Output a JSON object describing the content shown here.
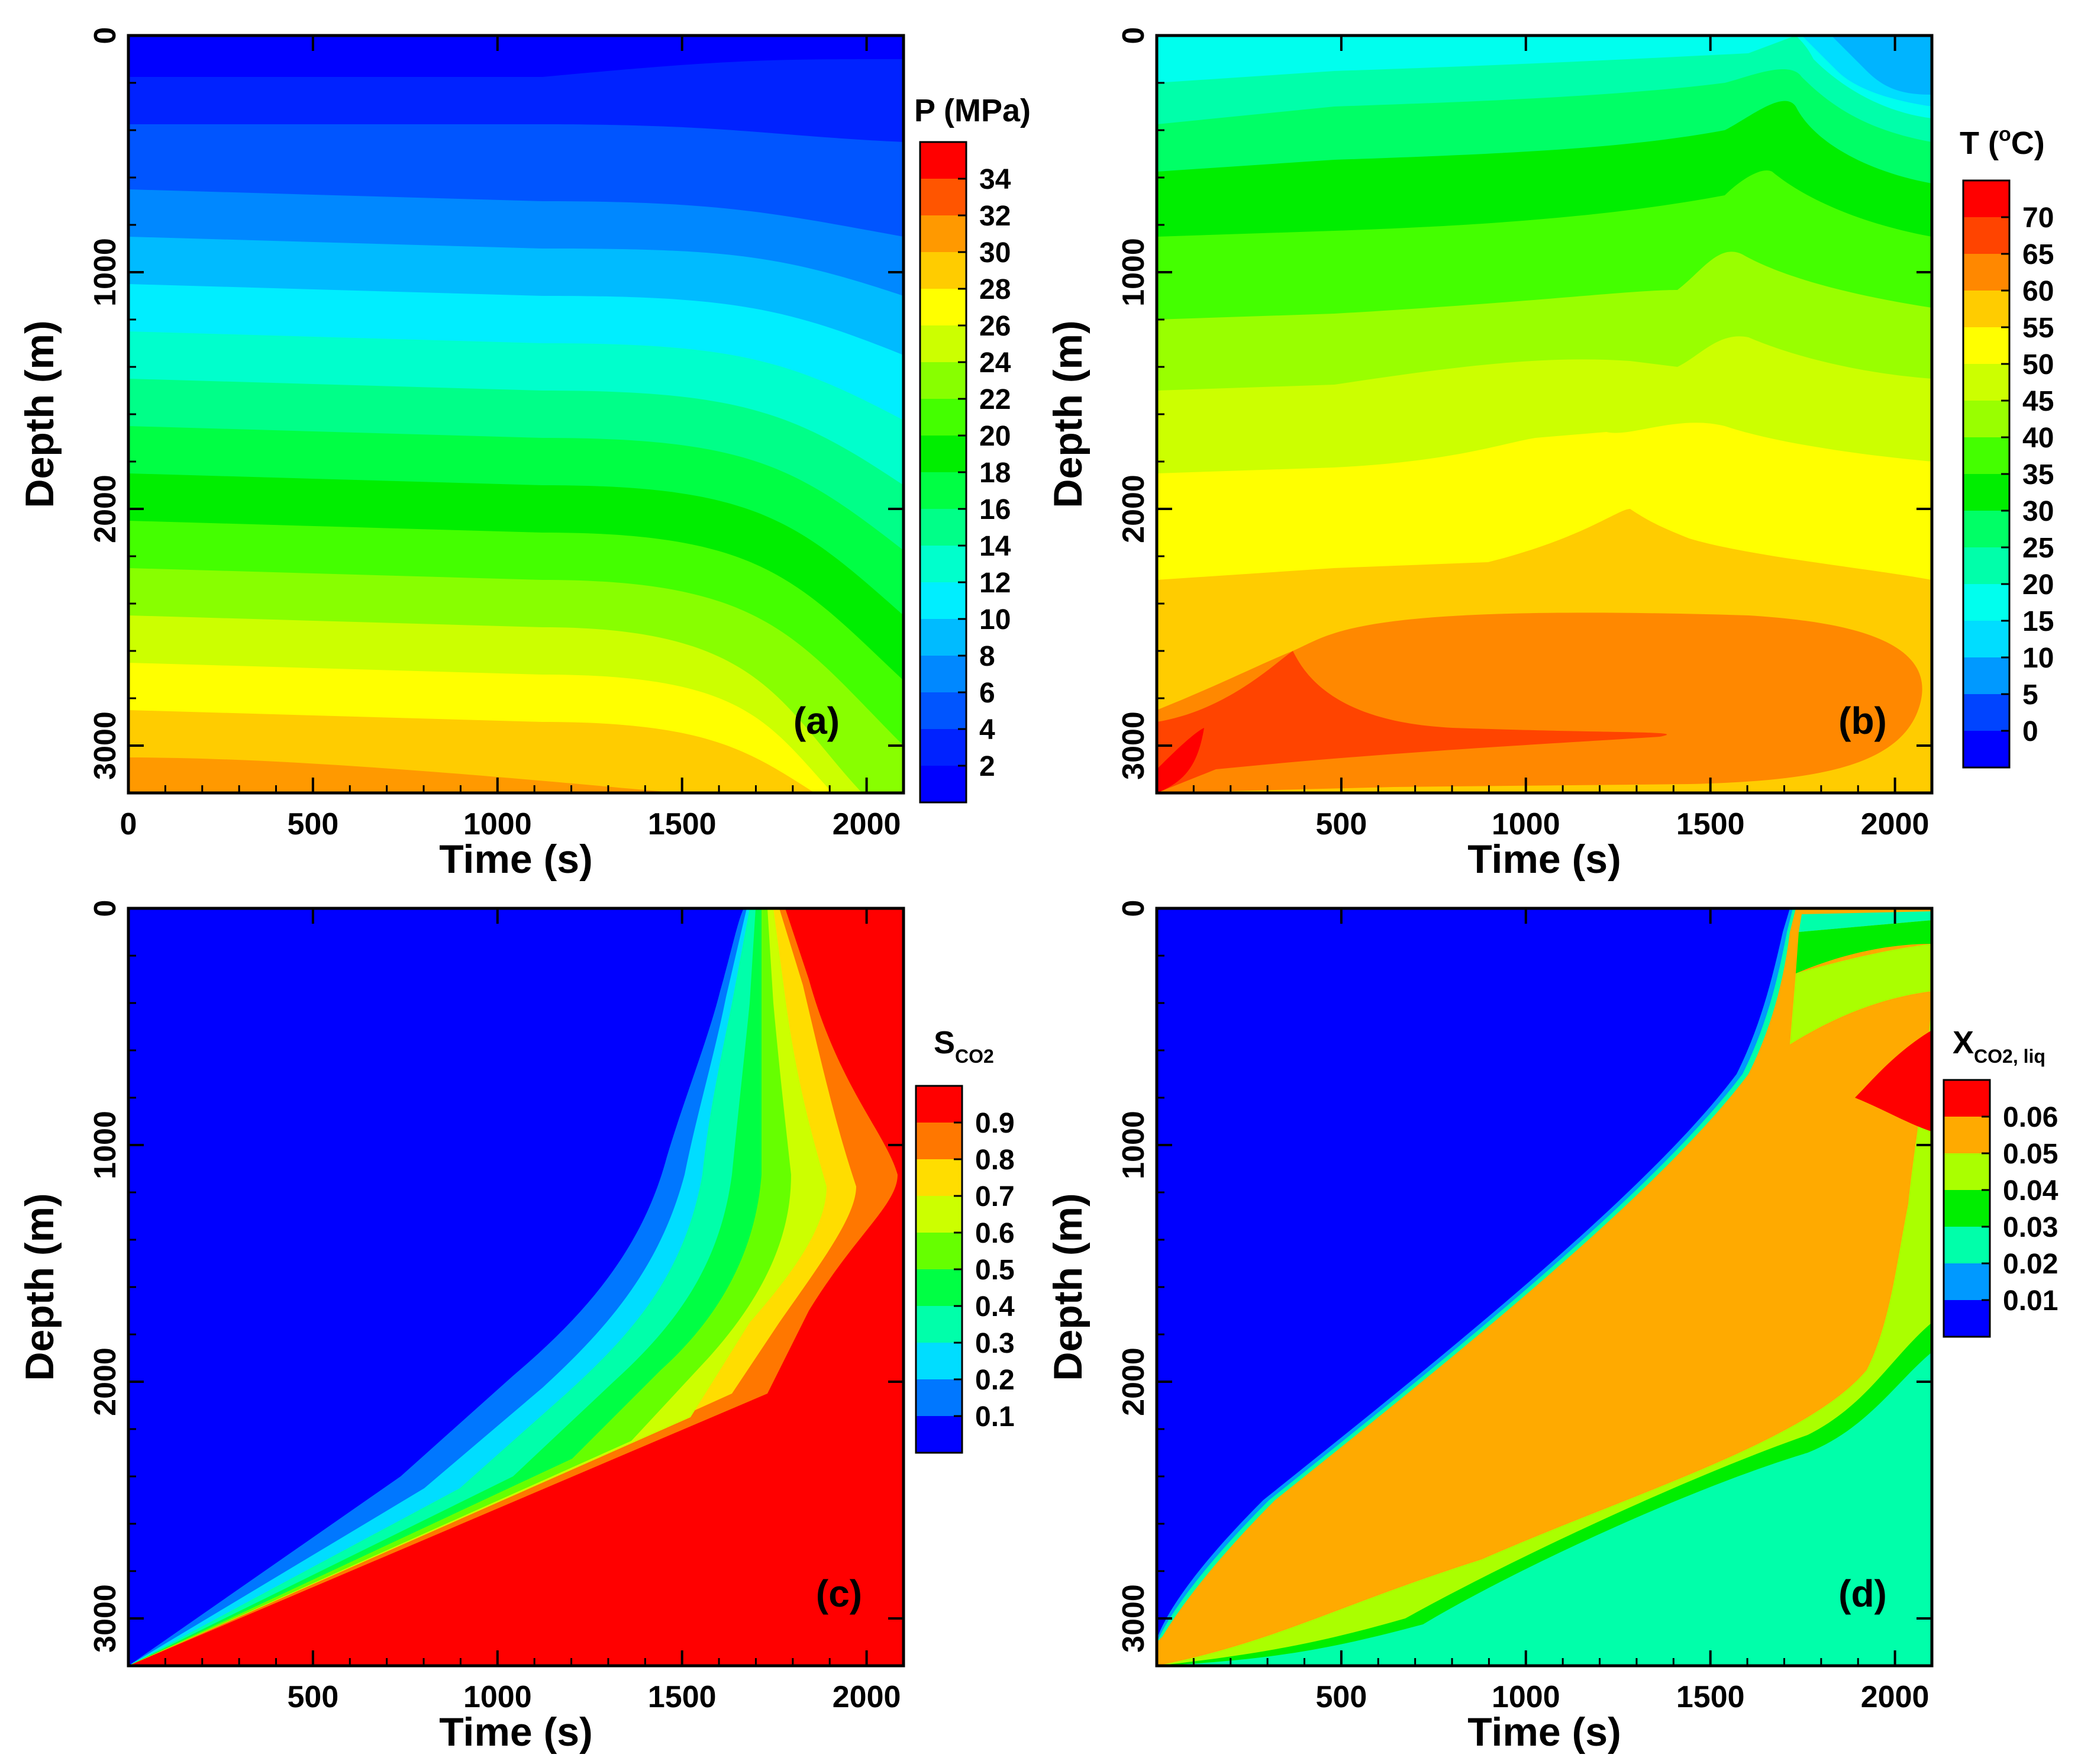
{
  "colors": {
    "depth_levels": [
      "#0000ff",
      "#0033ff",
      "#0066ff",
      "#0099ff",
      "#00ccff",
      "#00ffee",
      "#00ff99",
      "#00ff66",
      "#00ee00",
      "#33ff00",
      "#88ff00",
      "#bbff00",
      "#eeff00",
      "#ffdd00",
      "#ffaa00",
      "#ff7700",
      "#ff4400",
      "#ff0000"
    ]
  },
  "chart_data": [
    {
      "id": "a",
      "type": "contour",
      "panel_label": "(a)",
      "xlabel": "Time (s)",
      "ylabel": "Depth (m)",
      "xlim": [
        0,
        2100
      ],
      "ylim": [
        3200,
        0
      ],
      "xticks": [
        "0",
        "500",
        "1000",
        "1500",
        "2000"
      ],
      "xtick_values": [
        0,
        500,
        1000,
        1500,
        2000
      ],
      "yticks": [
        "0",
        "1000",
        "2000",
        "3000"
      ],
      "ytick_values": [
        0,
        1000,
        2000,
        3000
      ],
      "legend_title": "P (MPa)",
      "legend_levels": [
        "2",
        "4",
        "6",
        "8",
        "10",
        "12",
        "14",
        "16",
        "18",
        "20",
        "22",
        "24",
        "26",
        "28",
        "30",
        "32",
        "34"
      ],
      "legend_colors": [
        "#0000ff",
        "#0022ff",
        "#0055ff",
        "#0088ff",
        "#00bbff",
        "#00eeff",
        "#00ffcc",
        "#00ff88",
        "#00ff44",
        "#00ee00",
        "#44ff00",
        "#88ff00",
        "#ccff00",
        "#ffff00",
        "#ffcc00",
        "#ff9900",
        "#ff5500",
        "#ff0000"
      ]
    },
    {
      "id": "b",
      "type": "contour",
      "panel_label": "(b)",
      "xlabel": "Time (s)",
      "ylabel": "Depth (m)",
      "xlim": [
        0,
        2100
      ],
      "ylim": [
        3200,
        0
      ],
      "xticks": [
        "500",
        "1000",
        "1500",
        "2000"
      ],
      "xtick_values": [
        500,
        1000,
        1500,
        2000
      ],
      "yticks": [
        "0",
        "1000",
        "2000",
        "3000"
      ],
      "ytick_values": [
        0,
        1000,
        2000,
        3000
      ],
      "legend_title_main": "T (",
      "legend_title_sup": "o",
      "legend_title_end": "C)",
      "legend_levels": [
        "0",
        "5",
        "10",
        "15",
        "20",
        "25",
        "30",
        "35",
        "40",
        "45",
        "50",
        "55",
        "60",
        "65",
        "70"
      ],
      "legend_colors": [
        "#0000ff",
        "#0044ff",
        "#0099ff",
        "#00ddff",
        "#00ffee",
        "#00ffaa",
        "#00ff66",
        "#00ee00",
        "#44ff00",
        "#99ff00",
        "#ccff00",
        "#ffff00",
        "#ffcc00",
        "#ff8800",
        "#ff4400",
        "#ff0000"
      ]
    },
    {
      "id": "c",
      "type": "contour",
      "panel_label": "(c)",
      "xlabel": "Time (s)",
      "ylabel": "Depth (m)",
      "xlim": [
        0,
        2100
      ],
      "ylim": [
        3200,
        0
      ],
      "xticks": [
        "500",
        "1000",
        "1500",
        "2000"
      ],
      "xtick_values": [
        500,
        1000,
        1500,
        2000
      ],
      "yticks": [
        "0",
        "1000",
        "2000",
        "3000"
      ],
      "ytick_values": [
        0,
        1000,
        2000,
        3000
      ],
      "legend_title_main": "S",
      "legend_title_sub": "CO2",
      "legend_levels": [
        "0.1",
        "0.2",
        "0.3",
        "0.4",
        "0.5",
        "0.6",
        "0.7",
        "0.8",
        "0.9"
      ],
      "legend_colors": [
        "#0000ff",
        "#0077ff",
        "#00ddff",
        "#00ffaa",
        "#00ff44",
        "#66ff00",
        "#ccff00",
        "#ffdd00",
        "#ff7700",
        "#ff0000"
      ]
    },
    {
      "id": "d",
      "type": "contour",
      "panel_label": "(d)",
      "xlabel": "Time (s)",
      "ylabel": "Depth (m)",
      "xlim": [
        0,
        2100
      ],
      "ylim": [
        3200,
        0
      ],
      "xticks": [
        "500",
        "1000",
        "1500",
        "2000"
      ],
      "xtick_values": [
        500,
        1000,
        1500,
        2000
      ],
      "yticks": [
        "0",
        "1000",
        "2000",
        "3000"
      ],
      "ytick_values": [
        0,
        1000,
        2000,
        3000
      ],
      "legend_title_main": "X",
      "legend_title_sub": "CO2, liq",
      "legend_levels": [
        "0.01",
        "0.02",
        "0.03",
        "0.04",
        "0.05",
        "0.06"
      ],
      "legend_colors": [
        "#0000ff",
        "#0099ff",
        "#00ffaa",
        "#00ee00",
        "#aaff00",
        "#ffaa00",
        "#ff0000"
      ]
    }
  ]
}
